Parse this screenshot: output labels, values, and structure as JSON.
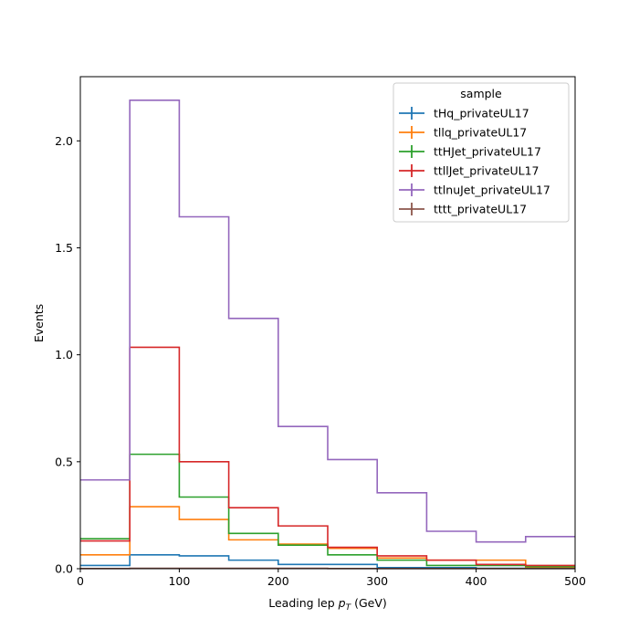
{
  "chart_data": {
    "type": "line",
    "title": "",
    "xlabel_prefix": "Leading lep ",
    "xlabel_var": "p",
    "xlabel_sub": "T",
    "xlabel_suffix": " (GeV)",
    "ylabel": "Events",
    "xlim": [
      0,
      500
    ],
    "ylim": [
      0,
      2.3
    ],
    "xticks": [
      0,
      100,
      200,
      300,
      400,
      500
    ],
    "yticks": [
      0.0,
      0.5,
      1.0,
      1.5,
      2.0
    ],
    "ytick_labels": [
      "0.0",
      "0.5",
      "1.0",
      "1.5",
      "2.0"
    ],
    "grid": false,
    "legend_title": "sample",
    "legend_position": "top-right",
    "bin_edges": [
      0,
      50,
      100,
      150,
      200,
      250,
      300,
      350,
      400,
      450,
      500
    ],
    "series": [
      {
        "name": "tHq_privateUL17",
        "color": "#1f77b4",
        "values": [
          0.015,
          0.065,
          0.06,
          0.04,
          0.02,
          0.02,
          0.005,
          0.005,
          0.002,
          0.002
        ]
      },
      {
        "name": "tllq_privateUL17",
        "color": "#ff7f0e",
        "values": [
          0.065,
          0.29,
          0.23,
          0.135,
          0.115,
          0.095,
          0.05,
          0.04,
          0.04,
          0.005
        ]
      },
      {
        "name": "ttHJet_privateUL17",
        "color": "#2ca02c",
        "values": [
          0.14,
          0.535,
          0.335,
          0.165,
          0.11,
          0.065,
          0.04,
          0.015,
          0.015,
          0.01
        ]
      },
      {
        "name": "ttllJet_privateUL17",
        "color": "#d62728",
        "values": [
          0.13,
          1.035,
          0.5,
          0.285,
          0.2,
          0.1,
          0.06,
          0.04,
          0.02,
          0.015
        ]
      },
      {
        "name": "ttlnuJet_privateUL17",
        "color": "#9467bd",
        "values": [
          0.415,
          2.19,
          1.645,
          1.17,
          0.665,
          0.51,
          0.355,
          0.175,
          0.125,
          0.15
        ]
      },
      {
        "name": "tttt_privateUL17",
        "color": "#8c564b",
        "values": [
          0.001,
          0.002,
          0.002,
          0.002,
          0.002,
          0.001,
          0.001,
          0.001,
          0.001,
          0.001
        ]
      }
    ]
  }
}
